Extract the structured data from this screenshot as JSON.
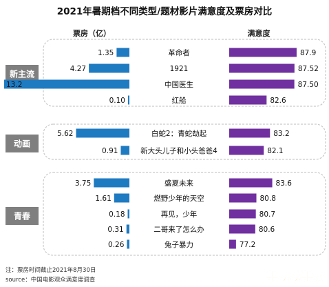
{
  "title": "2021年暑期档不同类型/题材影片满意度及票房对比",
  "left_header": "票房（亿）",
  "right_header": "满意度",
  "notes": [
    "注：票房时间截止2021年8月30日",
    "source：中国电影观众满意度调查"
  ],
  "watermark": "手动动手游",
  "colors": {
    "box_office": "#1f7bc1",
    "satisfaction": "#7030a0",
    "group_label_bg": "#7f7f7f"
  },
  "chart_data": {
    "type": "bar",
    "title": "2021年暑期档不同类型/题材影片满意度及票房对比",
    "groups": [
      {
        "label": "新主流",
        "films": [
          {
            "name": "革命者",
            "box_office": 1.35,
            "satisfaction": 87.9,
            "box_label": "1.35",
            "sat_label": "87.9"
          },
          {
            "name": "1921",
            "box_office": 4.27,
            "satisfaction": 87.52,
            "box_label": "4.27",
            "sat_label": "87.52"
          },
          {
            "name": "中国医生",
            "box_office": 13.2,
            "satisfaction": 87.5,
            "box_label": "13.2",
            "sat_label": "87.50"
          },
          {
            "name": "红船",
            "box_office": 0.1,
            "satisfaction": 82.6,
            "box_label": "0.10",
            "sat_label": "82.6"
          }
        ]
      },
      {
        "label": "动画",
        "films": [
          {
            "name": "白蛇2：青蛇劫起",
            "box_office": 5.62,
            "satisfaction": 83.2,
            "box_label": "5.62",
            "sat_label": "83.2"
          },
          {
            "name": "新大头儿子和小头爸爸4",
            "box_office": 0.91,
            "satisfaction": 82.1,
            "box_label": "0.91",
            "sat_label": "82.1"
          }
        ]
      },
      {
        "label": "青春",
        "films": [
          {
            "name": "盛夏未来",
            "box_office": 3.75,
            "satisfaction": 83.6,
            "box_label": "3.75",
            "sat_label": "83.6"
          },
          {
            "name": "燃野少年的天空",
            "box_office": 1.61,
            "satisfaction": 80.8,
            "box_label": "1.61",
            "sat_label": "80.8"
          },
          {
            "name": "再见，少年",
            "box_office": 0.18,
            "satisfaction": 80.7,
            "box_label": "0.18",
            "sat_label": "80.7"
          },
          {
            "name": "二哥来了怎么办",
            "box_office": 0.31,
            "satisfaction": 80.6,
            "box_label": "0.31",
            "sat_label": "80.6"
          },
          {
            "name": "兔子暴力",
            "box_office": 0.26,
            "satisfaction": 77.2,
            "box_label": "0.26",
            "sat_label": "77.2"
          }
        ]
      }
    ]
  }
}
